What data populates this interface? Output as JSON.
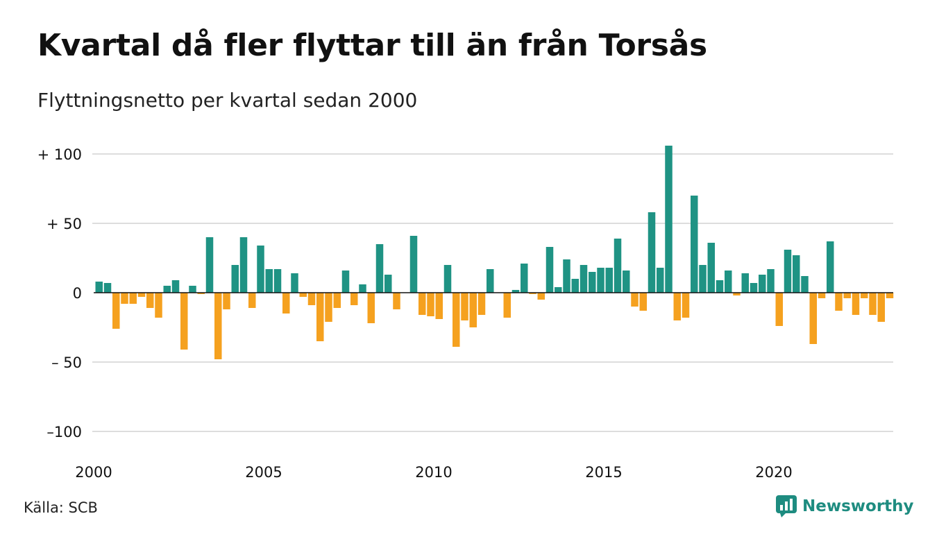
{
  "header": {
    "title": "Kvartal då fler flyttar till än från Torsås",
    "subtitle": "Flyttningsnetto per kvartal sedan 2000"
  },
  "footer": {
    "source": "Källa: SCB",
    "brand": "Newsworthy"
  },
  "colors": {
    "positive": "#1f9384",
    "negative": "#f5a11f",
    "grid": "#dddddd",
    "zero_line": "#111111",
    "brand": "#1e8c80"
  },
  "chart_data": {
    "type": "bar",
    "ylim": [
      -100,
      106
    ],
    "y_ticks": [
      {
        "value": 100,
        "label": "+ 100"
      },
      {
        "value": 50,
        "label": "+  50"
      },
      {
        "value": 0,
        "label": "0"
      },
      {
        "value": -50,
        "label": "– 50"
      },
      {
        "value": -100,
        "label": "–100"
      }
    ],
    "x_ticks": [
      {
        "value": 2000,
        "label": "2000"
      },
      {
        "value": 2005,
        "label": "2005"
      },
      {
        "value": 2010,
        "label": "2010"
      },
      {
        "value": 2015,
        "label": "2015"
      },
      {
        "value": 2020,
        "label": "2020"
      }
    ],
    "start_year": 2000,
    "end_year": 2023,
    "values": [
      8,
      7,
      -26,
      -8,
      -8,
      -3,
      -11,
      -18,
      5,
      9,
      -41,
      5,
      -1,
      40,
      -48,
      -12,
      20,
      40,
      -11,
      34,
      17,
      17,
      -15,
      14,
      -3,
      -9,
      -35,
      -21,
      -11,
      16,
      -9,
      6,
      -22,
      35,
      13,
      -12,
      0,
      41,
      -16,
      -17,
      -19,
      20,
      -39,
      -20,
      -25,
      -16,
      17,
      0,
      -18,
      2,
      21,
      -1,
      -5,
      33,
      4,
      24,
      10,
      20,
      15,
      18,
      18,
      39,
      16,
      -10,
      -13,
      58,
      18,
      106,
      -20,
      -18,
      70,
      20,
      36,
      9,
      16,
      -2,
      14,
      7,
      13,
      17,
      -24,
      31,
      27,
      12,
      -37,
      -4,
      37,
      -13,
      -4,
      -16,
      -4,
      -16,
      -21,
      -4
    ]
  }
}
